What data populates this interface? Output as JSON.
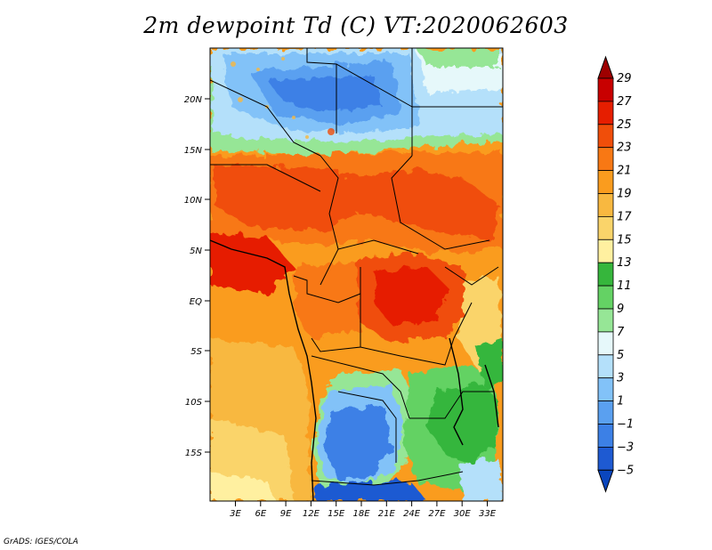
{
  "title": "2m dewpoint Td (C) VT:2020062603",
  "credit": "GrADS: IGES/COLA",
  "map": {
    "lat_ticks": [
      "20N",
      "15N",
      "10N",
      "5N",
      "EQ",
      "5S",
      "10S",
      "15S"
    ],
    "lon_ticks": [
      "3E",
      "6E",
      "9E",
      "12E",
      "15E",
      "18E",
      "21E",
      "24E",
      "27E",
      "30E",
      "33E"
    ]
  },
  "colorbar": {
    "labels": [
      "29",
      "27",
      "25",
      "23",
      "21",
      "19",
      "17",
      "15",
      "13",
      "11",
      "9",
      "7",
      "5",
      "3",
      "1",
      "−1",
      "−3",
      "−5"
    ],
    "colors": [
      "#9e0000",
      "#c80000",
      "#e61e00",
      "#f04e0a",
      "#f87814",
      "#fa9c1e",
      "#f8b840",
      "#fad46a",
      "#fff0a0",
      "#36b63c",
      "#64d264",
      "#96e696",
      "#e6f8fa",
      "#b4e0fa",
      "#82c2f8",
      "#5aa0f0",
      "#3c80e6",
      "#1e5ad2",
      "#0a46be"
    ]
  }
}
